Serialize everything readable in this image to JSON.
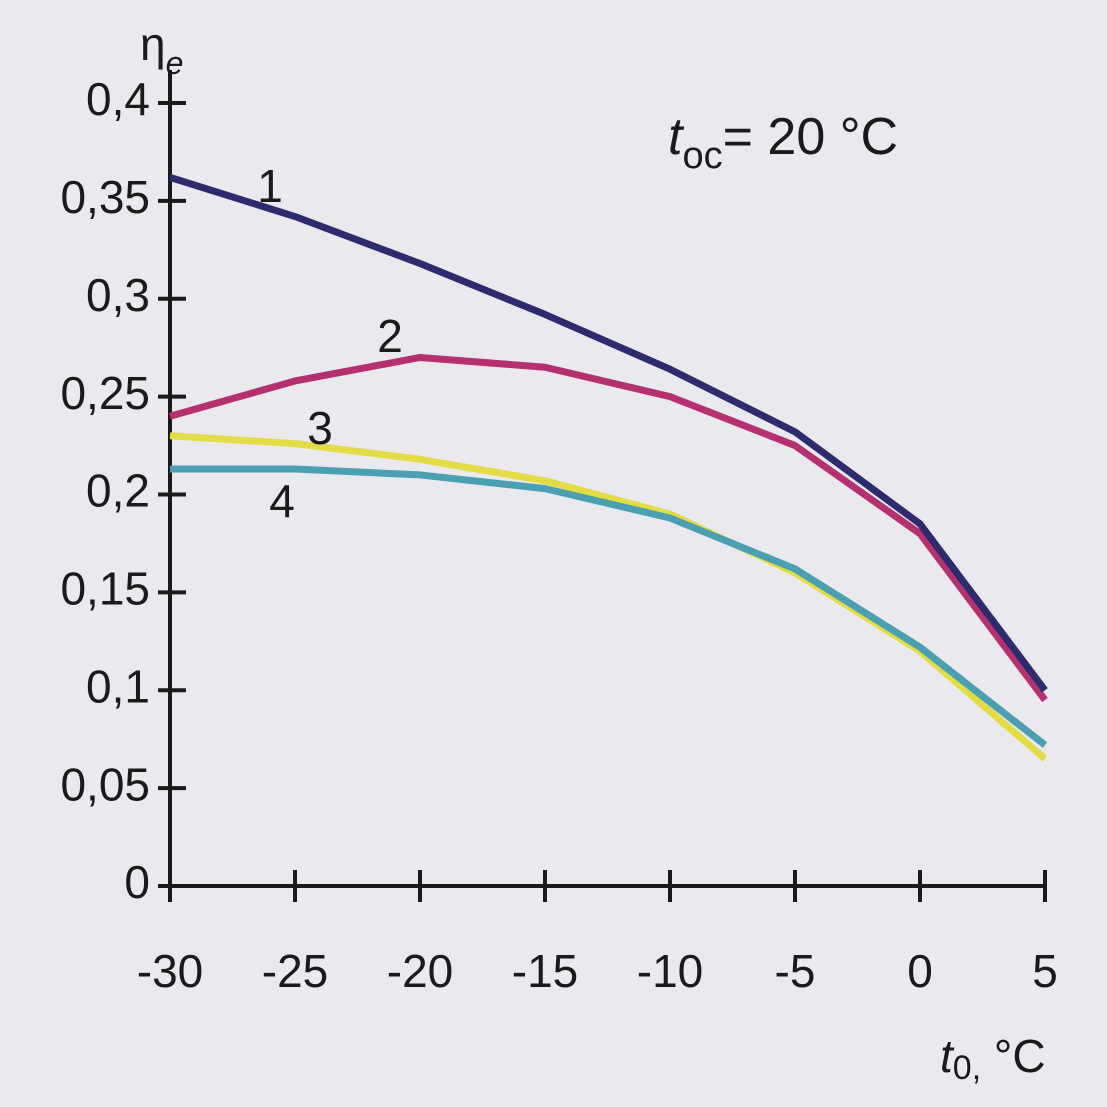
{
  "chart_data": {
    "type": "line",
    "title": [
      "t",
      "oc",
      "= 20 °C"
    ],
    "y_label": [
      "η",
      "e"
    ],
    "x_label": [
      "t",
      "0,",
      " °C"
    ],
    "x": [
      -30,
      -25,
      -20,
      -15,
      -10,
      -5,
      0,
      5
    ],
    "series": [
      {
        "name": "1",
        "color": "#2e2a6e",
        "values": [
          0.362,
          0.342,
          0.318,
          0.292,
          0.264,
          0.232,
          0.185,
          0.1
        ]
      },
      {
        "name": "2",
        "color": "#b5306e",
        "values": [
          0.24,
          0.258,
          0.27,
          0.265,
          0.25,
          0.225,
          0.18,
          0.095
        ]
      },
      {
        "name": "3",
        "color": "#e3dc44",
        "values": [
          0.23,
          0.226,
          0.218,
          0.207,
          0.19,
          0.16,
          0.12,
          0.065
        ]
      },
      {
        "name": "4",
        "color": "#4a9fb0",
        "values": [
          0.213,
          0.213,
          0.21,
          0.203,
          0.188,
          0.162,
          0.122,
          0.072
        ]
      }
    ],
    "xlim": [
      -30,
      5
    ],
    "xticks": [
      -30,
      -25,
      -20,
      -15,
      -10,
      -5,
      0,
      5
    ],
    "ylim": [
      0,
      0.4
    ],
    "yticks": [
      0,
      {
        "value": 0.05,
        "label": "0,05"
      },
      {
        "value": 0.1,
        "label": "0,1"
      },
      {
        "value": 0.15,
        "label": "0,15"
      },
      {
        "value": 0.2,
        "label": "0,2"
      },
      {
        "value": 0.25,
        "label": "0,25"
      },
      {
        "value": 0.3,
        "label": "0,3"
      },
      {
        "value": 0.35,
        "label": "0,35"
      },
      {
        "value": 0.4,
        "label": "0,4"
      }
    ]
  }
}
